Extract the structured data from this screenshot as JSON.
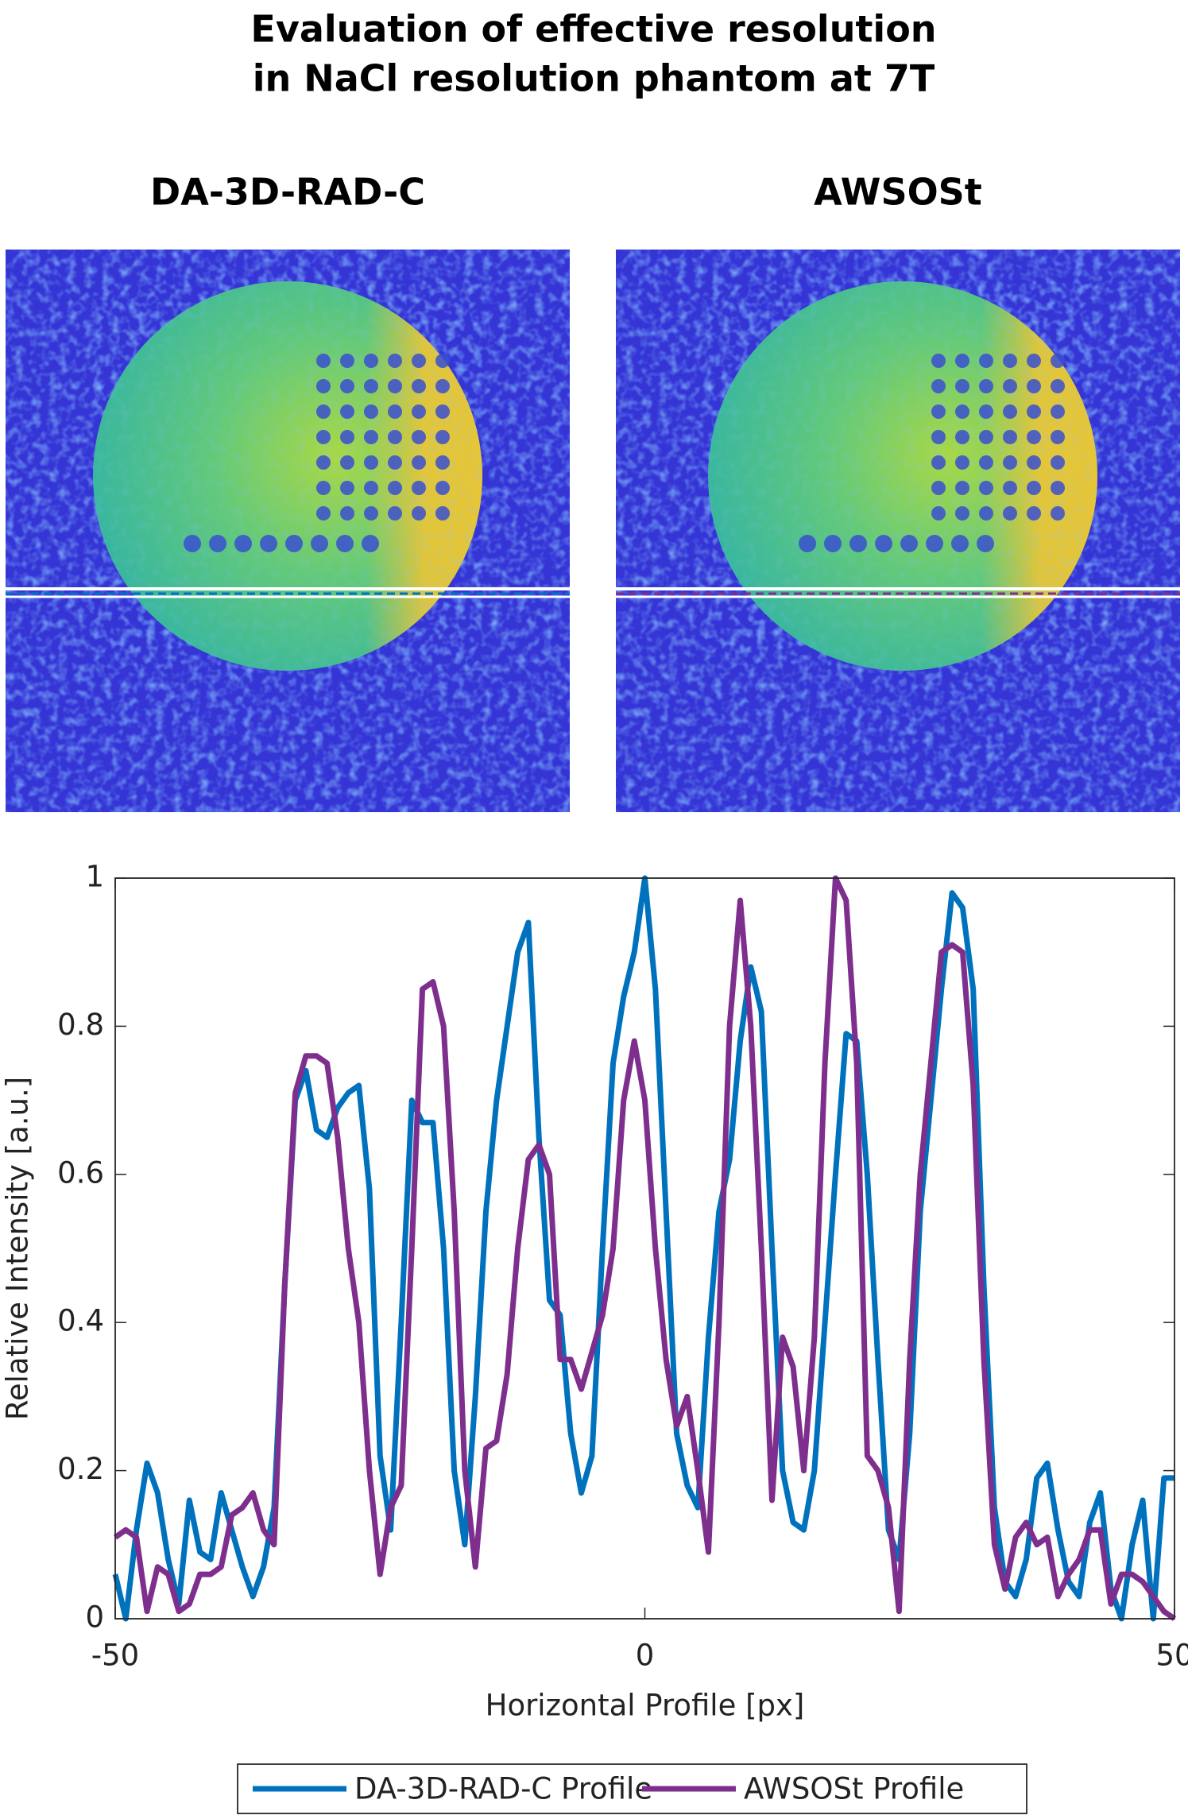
{
  "images": [
    {
      "title": "DA-3D-RAD-C"
    },
    {
      "title": "AWSOSt"
    }
  ],
  "chart_data": {
    "type": "line",
    "title": [
      "Evaluation of effective resolution",
      "in NaCl resolution phantom at 7T"
    ],
    "xlabel": "Horizontal Profile [px]",
    "ylabel": "Relative Intensity [a.u.]",
    "x": [
      -50,
      -49,
      -48,
      -47,
      -46,
      -45,
      -44,
      -43,
      -42,
      -41,
      -40,
      -39,
      -38,
      -37,
      -36,
      -35,
      -34,
      -33,
      -32,
      -31,
      -30,
      -29,
      -28,
      -27,
      -26,
      -25,
      -24,
      -23,
      -22,
      -21,
      -20,
      -19,
      -18,
      -17,
      -16,
      -15,
      -14,
      -13,
      -12,
      -11,
      -10,
      -9,
      -8,
      -7,
      -6,
      -5,
      -4,
      -3,
      -2,
      -1,
      0,
      1,
      2,
      3,
      4,
      5,
      6,
      7,
      8,
      9,
      10,
      11,
      12,
      13,
      14,
      15,
      16,
      17,
      18,
      19,
      20,
      21,
      22,
      23,
      24,
      25,
      26,
      27,
      28,
      29,
      30,
      31,
      32,
      33,
      34,
      35,
      36,
      37,
      38,
      39,
      40,
      41,
      42,
      43,
      44,
      45,
      46,
      47,
      48,
      49,
      50
    ],
    "series": [
      {
        "name": "DA-3D-RAD-C Profile",
        "color": "#0072bd",
        "values": [
          0.06,
          0.0,
          0.12,
          0.21,
          0.17,
          0.08,
          0.02,
          0.16,
          0.09,
          0.08,
          0.17,
          0.12,
          0.07,
          0.03,
          0.07,
          0.15,
          0.45,
          0.7,
          0.74,
          0.66,
          0.65,
          0.69,
          0.71,
          0.72,
          0.58,
          0.22,
          0.12,
          0.4,
          0.7,
          0.67,
          0.67,
          0.5,
          0.2,
          0.1,
          0.3,
          0.55,
          0.7,
          0.8,
          0.9,
          0.94,
          0.65,
          0.43,
          0.41,
          0.25,
          0.17,
          0.22,
          0.5,
          0.75,
          0.84,
          0.9,
          1.0,
          0.85,
          0.55,
          0.25,
          0.18,
          0.15,
          0.38,
          0.55,
          0.62,
          0.78,
          0.88,
          0.82,
          0.5,
          0.2,
          0.13,
          0.12,
          0.2,
          0.4,
          0.6,
          0.79,
          0.78,
          0.6,
          0.35,
          0.12,
          0.08,
          0.25,
          0.55,
          0.7,
          0.85,
          0.98,
          0.96,
          0.85,
          0.45,
          0.15,
          0.05,
          0.03,
          0.08,
          0.19,
          0.21,
          0.12,
          0.05,
          0.03,
          0.13,
          0.17,
          0.04,
          0.0,
          0.1,
          0.16,
          0.0,
          0.19,
          0.19
        ]
      },
      {
        "name": "AWSOSt Profile",
        "color": "#7e2f8e",
        "values": [
          0.11,
          0.12,
          0.11,
          0.01,
          0.07,
          0.06,
          0.01,
          0.02,
          0.06,
          0.06,
          0.07,
          0.14,
          0.15,
          0.17,
          0.12,
          0.1,
          0.45,
          0.71,
          0.76,
          0.76,
          0.75,
          0.65,
          0.5,
          0.4,
          0.2,
          0.06,
          0.15,
          0.18,
          0.5,
          0.85,
          0.86,
          0.8,
          0.55,
          0.2,
          0.07,
          0.23,
          0.24,
          0.33,
          0.5,
          0.62,
          0.64,
          0.6,
          0.35,
          0.35,
          0.31,
          0.36,
          0.41,
          0.5,
          0.7,
          0.78,
          0.7,
          0.5,
          0.35,
          0.26,
          0.3,
          0.2,
          0.09,
          0.4,
          0.8,
          0.97,
          0.8,
          0.5,
          0.16,
          0.38,
          0.34,
          0.2,
          0.38,
          0.75,
          1.0,
          0.97,
          0.75,
          0.22,
          0.2,
          0.15,
          0.01,
          0.35,
          0.6,
          0.75,
          0.9,
          0.91,
          0.9,
          0.72,
          0.35,
          0.1,
          0.04,
          0.11,
          0.13,
          0.1,
          0.11,
          0.03,
          0.06,
          0.08,
          0.12,
          0.12,
          0.02,
          0.06,
          0.06,
          0.05,
          0.03,
          0.01,
          0.0
        ]
      }
    ],
    "xlim": [
      -50,
      50
    ],
    "ylim": [
      0,
      1
    ],
    "xticks": [
      -50,
      0,
      50
    ],
    "yticks": [
      0,
      0.2,
      0.4,
      0.6,
      0.8,
      1
    ],
    "legend": "bottom"
  }
}
